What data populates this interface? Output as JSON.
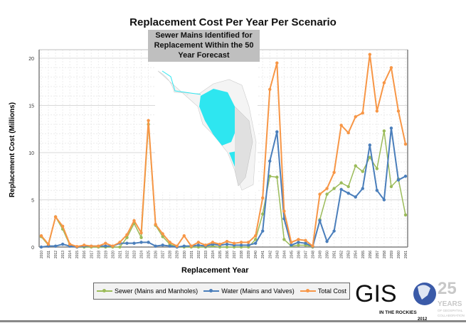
{
  "chart_data": {
    "type": "line",
    "title": "Replacement Cost Per Year Per Scenario",
    "xlabel": "Replacement Year",
    "ylabel": "Replacement Cost (Millions)",
    "ylim": [
      0,
      20
    ],
    "yticks": [
      0,
      5,
      10,
      15,
      20
    ],
    "grid": true,
    "legend": "bottom",
    "x": [
      2010,
      2011,
      2012,
      2013,
      2014,
      2015,
      2016,
      2017,
      2018,
      2019,
      2020,
      2021,
      2022,
      2023,
      2024,
      2025,
      2026,
      2027,
      2028,
      2029,
      2030,
      2031,
      2032,
      2033,
      2034,
      2035,
      2036,
      2037,
      2038,
      2039,
      2040,
      2041,
      2042,
      2043,
      2044,
      2045,
      2046,
      2047,
      2048,
      2049,
      2050,
      2051,
      2052,
      2053,
      2054,
      2055,
      2056,
      2057,
      2058,
      2059,
      2060,
      2061
    ],
    "series": [
      {
        "name": "Sewer (Mains and Manholes)",
        "color": "#9bbb59",
        "values": [
          1.1,
          0.2,
          3.2,
          1.9,
          0.2,
          0,
          0,
          0,
          0,
          0,
          0,
          0,
          1.0,
          2.5,
          1.0,
          13.0,
          2.3,
          1.1,
          0.3,
          0,
          0,
          0,
          0,
          0,
          0.1,
          0,
          0,
          0,
          0,
          0,
          0.8,
          3.5,
          7.5,
          7.4,
          0.8,
          0.1,
          0.2,
          0.2,
          0,
          2.9,
          5.6,
          6.2,
          6.8,
          6.4,
          8.6,
          8.0,
          9.5,
          8.3,
          12.3,
          6.4,
          7.2,
          3.4
        ]
      },
      {
        "name": "Water (Mains and Valves)",
        "color": "#4a7ebb",
        "values": [
          0,
          0.1,
          0.1,
          0.3,
          0.1,
          0,
          0.1,
          0.1,
          0.1,
          0.1,
          0.1,
          0.4,
          0.4,
          0.4,
          0.5,
          0.5,
          0.1,
          0.2,
          0.1,
          0,
          0.1,
          0.1,
          0.2,
          0.1,
          0.3,
          0.2,
          0.3,
          0.2,
          0.2,
          0.2,
          0.4,
          1.7,
          9.1,
          12.2,
          3.0,
          0.2,
          0.5,
          0.4,
          0.05,
          2.8,
          0.6,
          1.7,
          6.1,
          5.7,
          5.3,
          6.2,
          10.8,
          6.0,
          5.0,
          12.6,
          7.1,
          7.5
        ]
      },
      {
        "name": "Total Cost",
        "color": "#f79646",
        "values": [
          1.2,
          0.3,
          3.2,
          2.2,
          0.3,
          0.05,
          0.2,
          0.1,
          0.1,
          0.4,
          0.1,
          0.5,
          1.3,
          2.8,
          1.5,
          13.4,
          2.4,
          1.4,
          0.5,
          0.1,
          1.2,
          0.1,
          0.5,
          0.2,
          0.5,
          0.3,
          0.6,
          0.4,
          0.5,
          0.5,
          1.2,
          5.2,
          16.7,
          19.5,
          3.8,
          0.5,
          0.8,
          0.7,
          0.1,
          5.6,
          6.2,
          7.9,
          12.9,
          12.1,
          13.8,
          14.2,
          20.4,
          14.4,
          17.4,
          19.0,
          14.4,
          10.9
        ]
      }
    ]
  },
  "inset": {
    "caption": "Sewer Mains Identified for Replacement Within the 50 Year Forecast",
    "map_label": "..."
  },
  "logo": {
    "text": "GIS IN THE ROCKIES 2012",
    "badge": "25 YEARS OF GEOSPATIAL COLLABORATION"
  }
}
